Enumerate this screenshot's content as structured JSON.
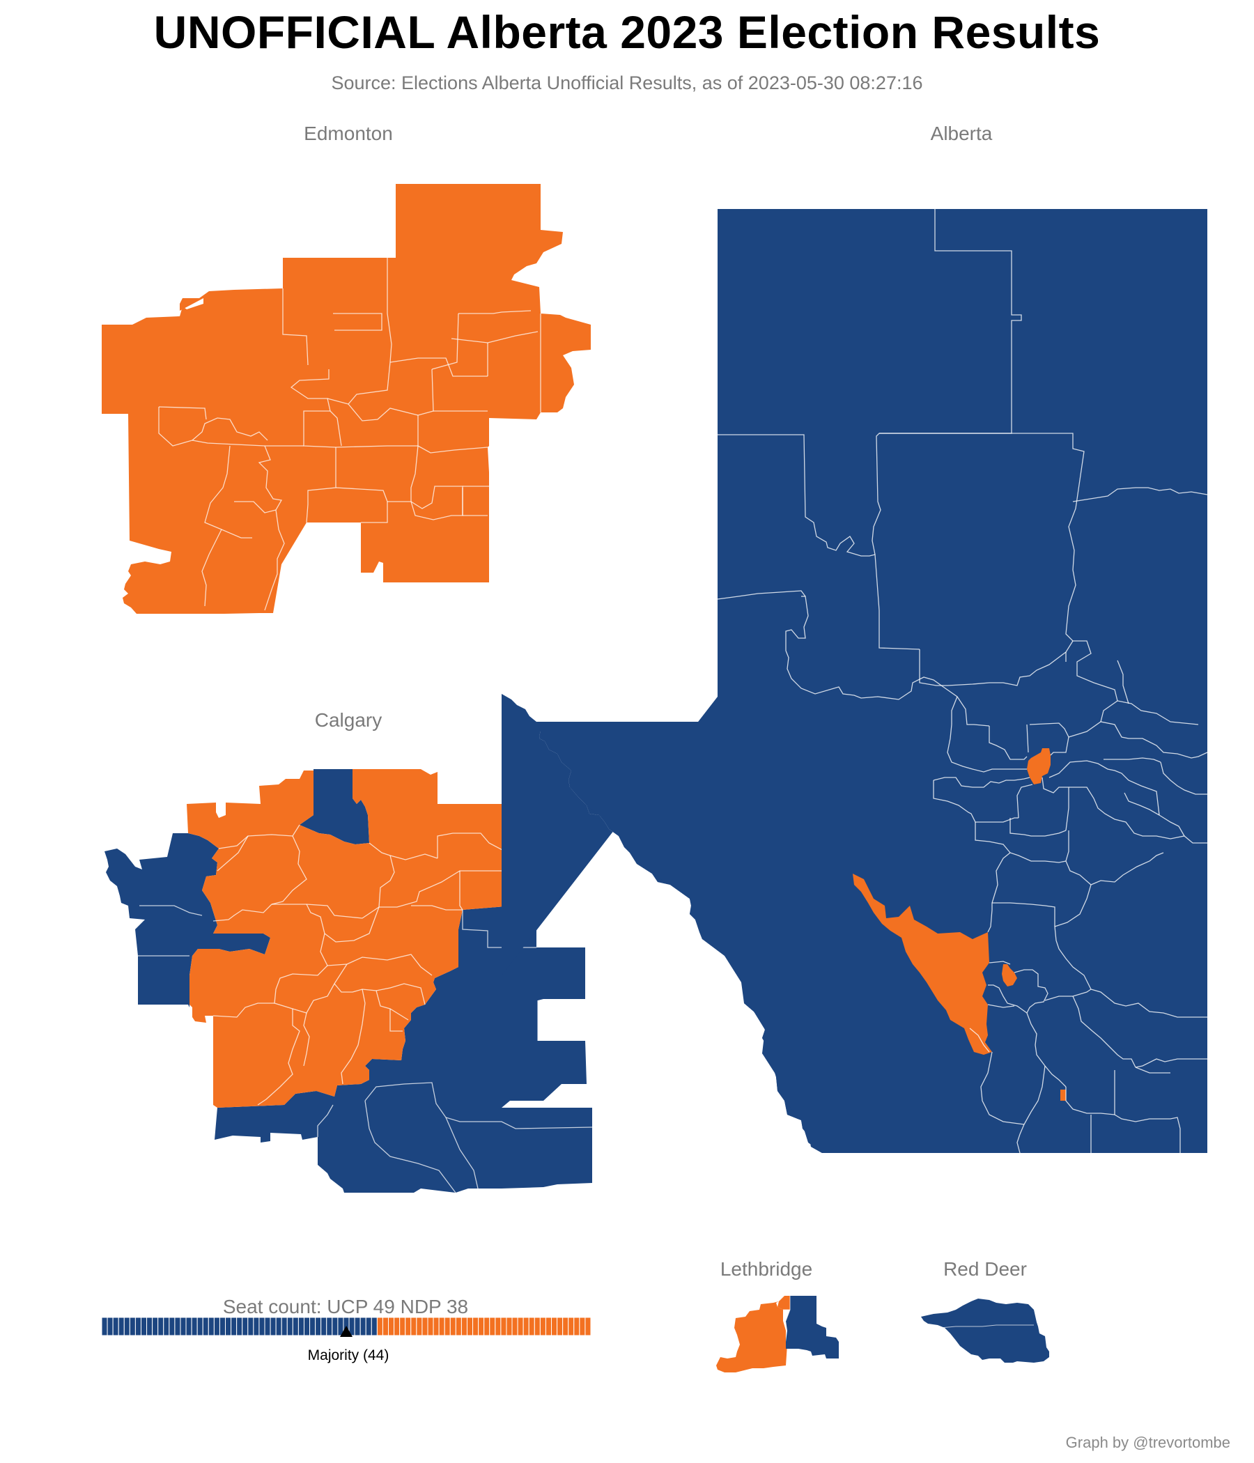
{
  "header": {
    "title": "UNOFFICIAL Alberta 2023 Election Results",
    "subtitle": "Source: Elections Alberta Unofficial Results, as of 2023-05-30 08:27:16"
  },
  "panels": {
    "edmonton": "Edmonton",
    "calgary": "Calgary",
    "alberta": "Alberta",
    "lethbridge": "Lethbridge",
    "red_deer": "Red Deer"
  },
  "colors": {
    "ucp": "#1c4580",
    "ndp": "#f37121",
    "border": "#ffffff"
  },
  "seat_count": {
    "label": "Seat count: UCP 49 NDP 38",
    "ucp": 49,
    "ndp": 38,
    "majority": 44,
    "majority_label": "Majority (44)"
  },
  "footer": {
    "credit": "Graph by @trevortombe"
  }
}
